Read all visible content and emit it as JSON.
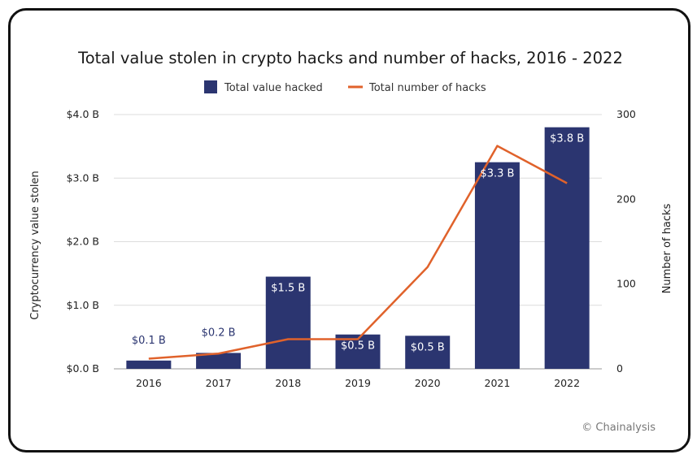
{
  "chart_data": {
    "type": "bar",
    "title": "Total value stolen in crypto hacks and number of hacks, 2016 - 2022",
    "categories": [
      "2016",
      "2017",
      "2018",
      "2019",
      "2020",
      "2021",
      "2022"
    ],
    "series": [
      {
        "name": "Total value hacked",
        "type": "bar",
        "axis": "left",
        "color": "#2b3570",
        "values": [
          0.13,
          0.25,
          1.45,
          0.54,
          0.52,
          3.25,
          3.8
        ],
        "data_labels": [
          "$0.1 B",
          "$0.2 B",
          "$1.5 B",
          "$0.5 B",
          "$0.5 B",
          "$3.3 B",
          "$3.8 B"
        ]
      },
      {
        "name": "Total number of hacks",
        "type": "line",
        "axis": "right",
        "color": "#e0622b",
        "values": [
          12,
          18,
          35,
          35,
          120,
          263,
          219
        ]
      }
    ],
    "ylabel": "Cryptocurrency value stolen",
    "ylim": [
      0,
      4
    ],
    "y_ticks": [
      "$0.0 B",
      "$1.0 B",
      "$2.0 B",
      "$3.0 B",
      "$4.0 B"
    ],
    "y2label": "Number of hacks",
    "y2lim": [
      0,
      300
    ],
    "y2_ticks": [
      "0",
      "100",
      "200",
      "300"
    ],
    "grid": true,
    "legend_position": "top-center",
    "label_outside_color": "#2b3570",
    "label_inside_color": "#ffffff"
  },
  "credit": "© Chainalysis"
}
